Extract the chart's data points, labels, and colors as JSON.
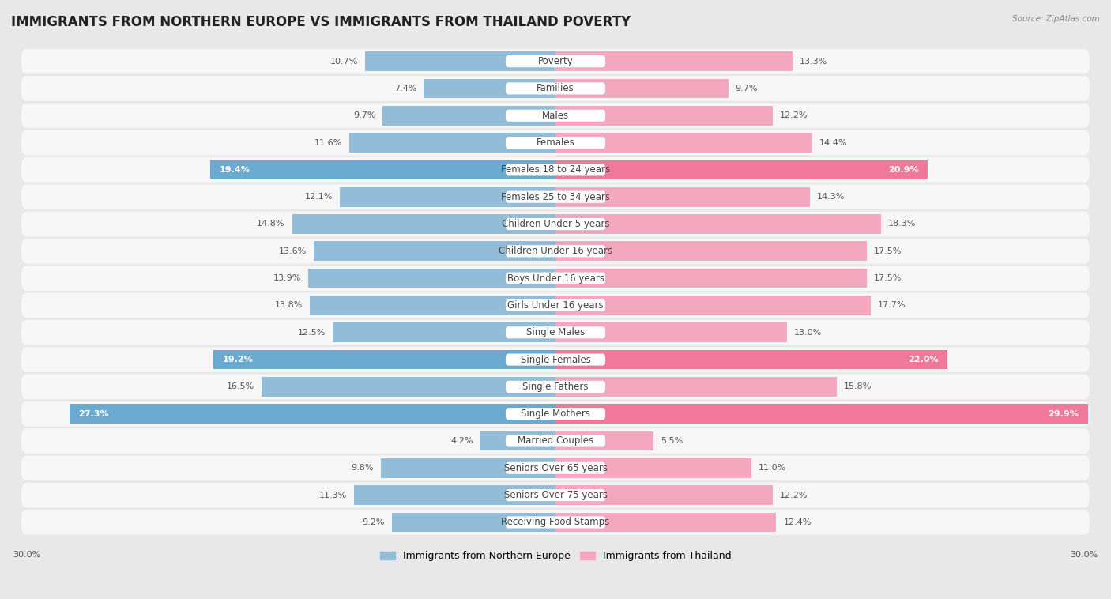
{
  "title": "IMMIGRANTS FROM NORTHERN EUROPE VS IMMIGRANTS FROM THAILAND POVERTY",
  "source": "Source: ZipAtlas.com",
  "categories": [
    "Poverty",
    "Families",
    "Males",
    "Females",
    "Females 18 to 24 years",
    "Females 25 to 34 years",
    "Children Under 5 years",
    "Children Under 16 years",
    "Boys Under 16 years",
    "Girls Under 16 years",
    "Single Males",
    "Single Females",
    "Single Fathers",
    "Single Mothers",
    "Married Couples",
    "Seniors Over 65 years",
    "Seniors Over 75 years",
    "Receiving Food Stamps"
  ],
  "left_values": [
    10.7,
    7.4,
    9.7,
    11.6,
    19.4,
    12.1,
    14.8,
    13.6,
    13.9,
    13.8,
    12.5,
    19.2,
    16.5,
    27.3,
    4.2,
    9.8,
    11.3,
    9.2
  ],
  "right_values": [
    13.3,
    9.7,
    12.2,
    14.4,
    20.9,
    14.3,
    18.3,
    17.5,
    17.5,
    17.7,
    13.0,
    22.0,
    15.8,
    29.9,
    5.5,
    11.0,
    12.2,
    12.4
  ],
  "left_color": "#92bcd8",
  "right_color": "#f4a8bf",
  "left_highlight_color": "#6aaad0",
  "right_highlight_color": "#f07898",
  "highlight_rows": [
    4,
    11,
    13
  ],
  "axis_max": 30.0,
  "background_color": "#e8e8e8",
  "bar_background": "#f7f7f7",
  "row_gap_color": "#e8e8e8",
  "left_label": "Immigrants from Northern Europe",
  "right_label": "Immigrants from Thailand",
  "title_fontsize": 12,
  "label_fontsize": 8.5,
  "value_fontsize": 8.0
}
